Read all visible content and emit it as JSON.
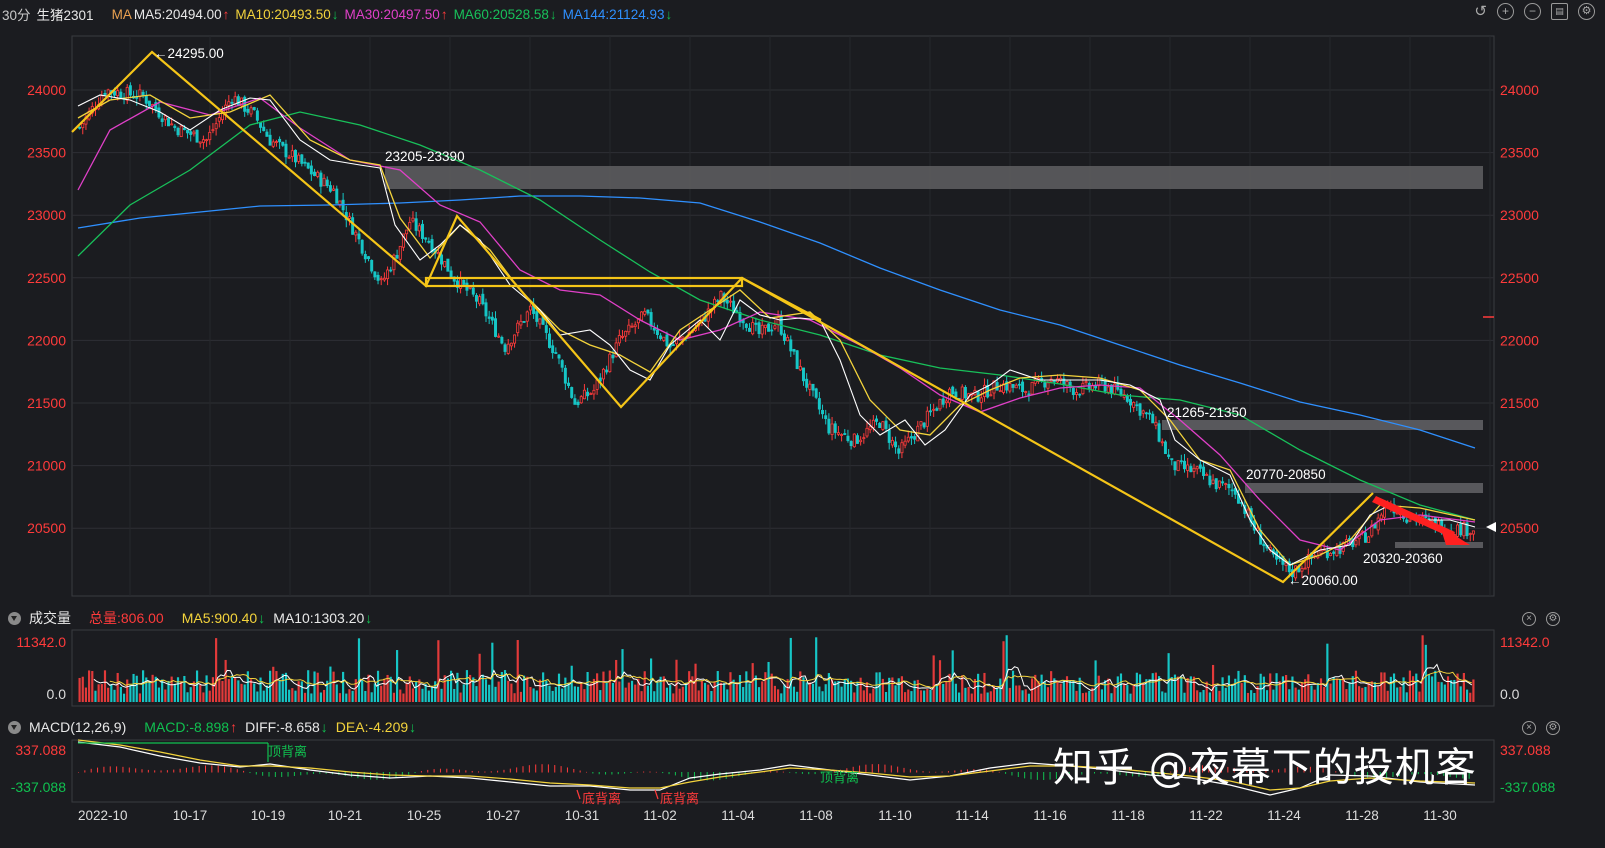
{
  "header": {
    "period": "30分",
    "symbol": "生猪2301",
    "ma_label": "MA",
    "ma5": "MA5:20494.00",
    "ma5_dir": "↑",
    "ma10": "MA10:20493.50",
    "ma10_dir": "↓",
    "ma30": "MA30:20497.50",
    "ma30_dir": "↑",
    "ma60": "MA60:20528.58",
    "ma60_dir": "↓",
    "ma144": "MA144:21124.93",
    "ma144_dir": "↓"
  },
  "toolbar": {
    "icons": [
      "undo-icon",
      "zoom-in-icon",
      "zoom-out-icon",
      "layout-icon",
      "settings-icon"
    ]
  },
  "colors": {
    "ma5": "#ffffff",
    "ma10": "#f3d33c",
    "ma30": "#e040c8",
    "ma60": "#18c05a",
    "ma144": "#2f90ff",
    "up": "#ff3b3b",
    "down": "#16c6c6",
    "trend": "#f5c518",
    "zone": "#5a5a5e"
  },
  "price_axis": {
    "ticks": [
      "24000",
      "23500",
      "23000",
      "22500",
      "22000",
      "21500",
      "21000",
      "20500"
    ]
  },
  "annotations": {
    "high": "24295.00",
    "low": "20060.00",
    "zone1": "23205-23390",
    "zone2": "21265-21350",
    "zone3": "20770-20850",
    "zone4": "20320-20360"
  },
  "volume_panel": {
    "title": "成交量",
    "total_label": "总量:806.00",
    "ma5": "MA5:900.40",
    "ma5_dir": "↓",
    "ma10": "MA10:1303.20",
    "ma10_dir": "↓",
    "ticks": [
      "11342.0",
      "0.0"
    ]
  },
  "macd_panel": {
    "title": "MACD(12,26,9)",
    "macd": "MACD:-8.898",
    "macd_dir": "↑",
    "diff": "DIFF:-8.658",
    "diff_dir": "↓",
    "dea": "DEA:-4.209",
    "dea_dir": "↓",
    "ticks": [
      "337.088",
      "-337.088"
    ],
    "right_ticks": [
      "337.088",
      "-337.088"
    ],
    "labels": {
      "top1": "顶背离",
      "bottom1": "底背离",
      "bottom2": "底背离",
      "top2": "顶背离"
    }
  },
  "x_axis": [
    "2022-10",
    "10-17",
    "10-19",
    "10-21",
    "10-25",
    "10-27",
    "10-31",
    "11-02",
    "11-04",
    "11-08",
    "11-10",
    "11-14",
    "11-16",
    "11-18",
    "11-22",
    "11-24",
    "11-28",
    "11-30"
  ],
  "watermark": "知乎 @夜幕下的投机客",
  "chart_data": {
    "type": "candlestick",
    "instrument": "生猪2301",
    "period": "30分",
    "y_range": [
      19900,
      24350
    ],
    "approx_close_path": [
      [
        0,
        23700
      ],
      [
        8,
        24000
      ],
      [
        20,
        23950
      ],
      [
        30,
        23700
      ],
      [
        40,
        23600
      ],
      [
        48,
        23950
      ],
      [
        55,
        23800
      ],
      [
        60,
        23600
      ],
      [
        68,
        23450
      ],
      [
        75,
        23300
      ],
      [
        80,
        23200
      ],
      [
        88,
        22800
      ],
      [
        95,
        22450
      ],
      [
        100,
        22700
      ],
      [
        104,
        22950
      ],
      [
        110,
        22800
      ],
      [
        118,
        22500
      ],
      [
        126,
        22300
      ],
      [
        134,
        21950
      ],
      [
        142,
        22250
      ],
      [
        150,
        21900
      ],
      [
        156,
        21500
      ],
      [
        162,
        21600
      ],
      [
        170,
        22000
      ],
      [
        178,
        22200
      ],
      [
        186,
        21950
      ],
      [
        194,
        22100
      ],
      [
        202,
        22350
      ],
      [
        208,
        22200
      ],
      [
        214,
        22050
      ],
      [
        220,
        22150
      ],
      [
        228,
        21700
      ],
      [
        236,
        21300
      ],
      [
        244,
        21200
      ],
      [
        252,
        21350
      ],
      [
        258,
        21100
      ],
      [
        266,
        21350
      ],
      [
        274,
        21600
      ],
      [
        282,
        21550
      ],
      [
        290,
        21650
      ],
      [
        298,
        21600
      ],
      [
        306,
        21700
      ],
      [
        314,
        21600
      ],
      [
        322,
        21650
      ],
      [
        330,
        21550
      ],
      [
        338,
        21350
      ],
      [
        344,
        21000
      ],
      [
        352,
        20950
      ],
      [
        358,
        20850
      ],
      [
        364,
        20800
      ],
      [
        370,
        20500
      ],
      [
        376,
        20250
      ],
      [
        382,
        20150
      ],
      [
        390,
        20300
      ],
      [
        398,
        20350
      ],
      [
        406,
        20450
      ],
      [
        412,
        20700
      ],
      [
        418,
        20600
      ],
      [
        424,
        20550
      ],
      [
        432,
        20500
      ],
      [
        438,
        20494
      ]
    ],
    "ma144_path": [
      [
        0,
        22880
      ],
      [
        40,
        22980
      ],
      [
        80,
        23050
      ],
      [
        120,
        23100
      ],
      [
        150,
        23150
      ],
      [
        180,
        23100
      ],
      [
        210,
        23000
      ],
      [
        240,
        22750
      ],
      [
        270,
        22450
      ],
      [
        300,
        22150
      ],
      [
        330,
        21900
      ],
      [
        360,
        21700
      ],
      [
        390,
        21500
      ],
      [
        420,
        21300
      ],
      [
        440,
        21125
      ]
    ],
    "annotated_levels": {
      "high": 24295,
      "low": 20060
    },
    "zones": [
      [
        23205,
        23390
      ],
      [
        21265,
        21350
      ],
      [
        20770,
        20850
      ],
      [
        20320,
        20360
      ]
    ]
  }
}
